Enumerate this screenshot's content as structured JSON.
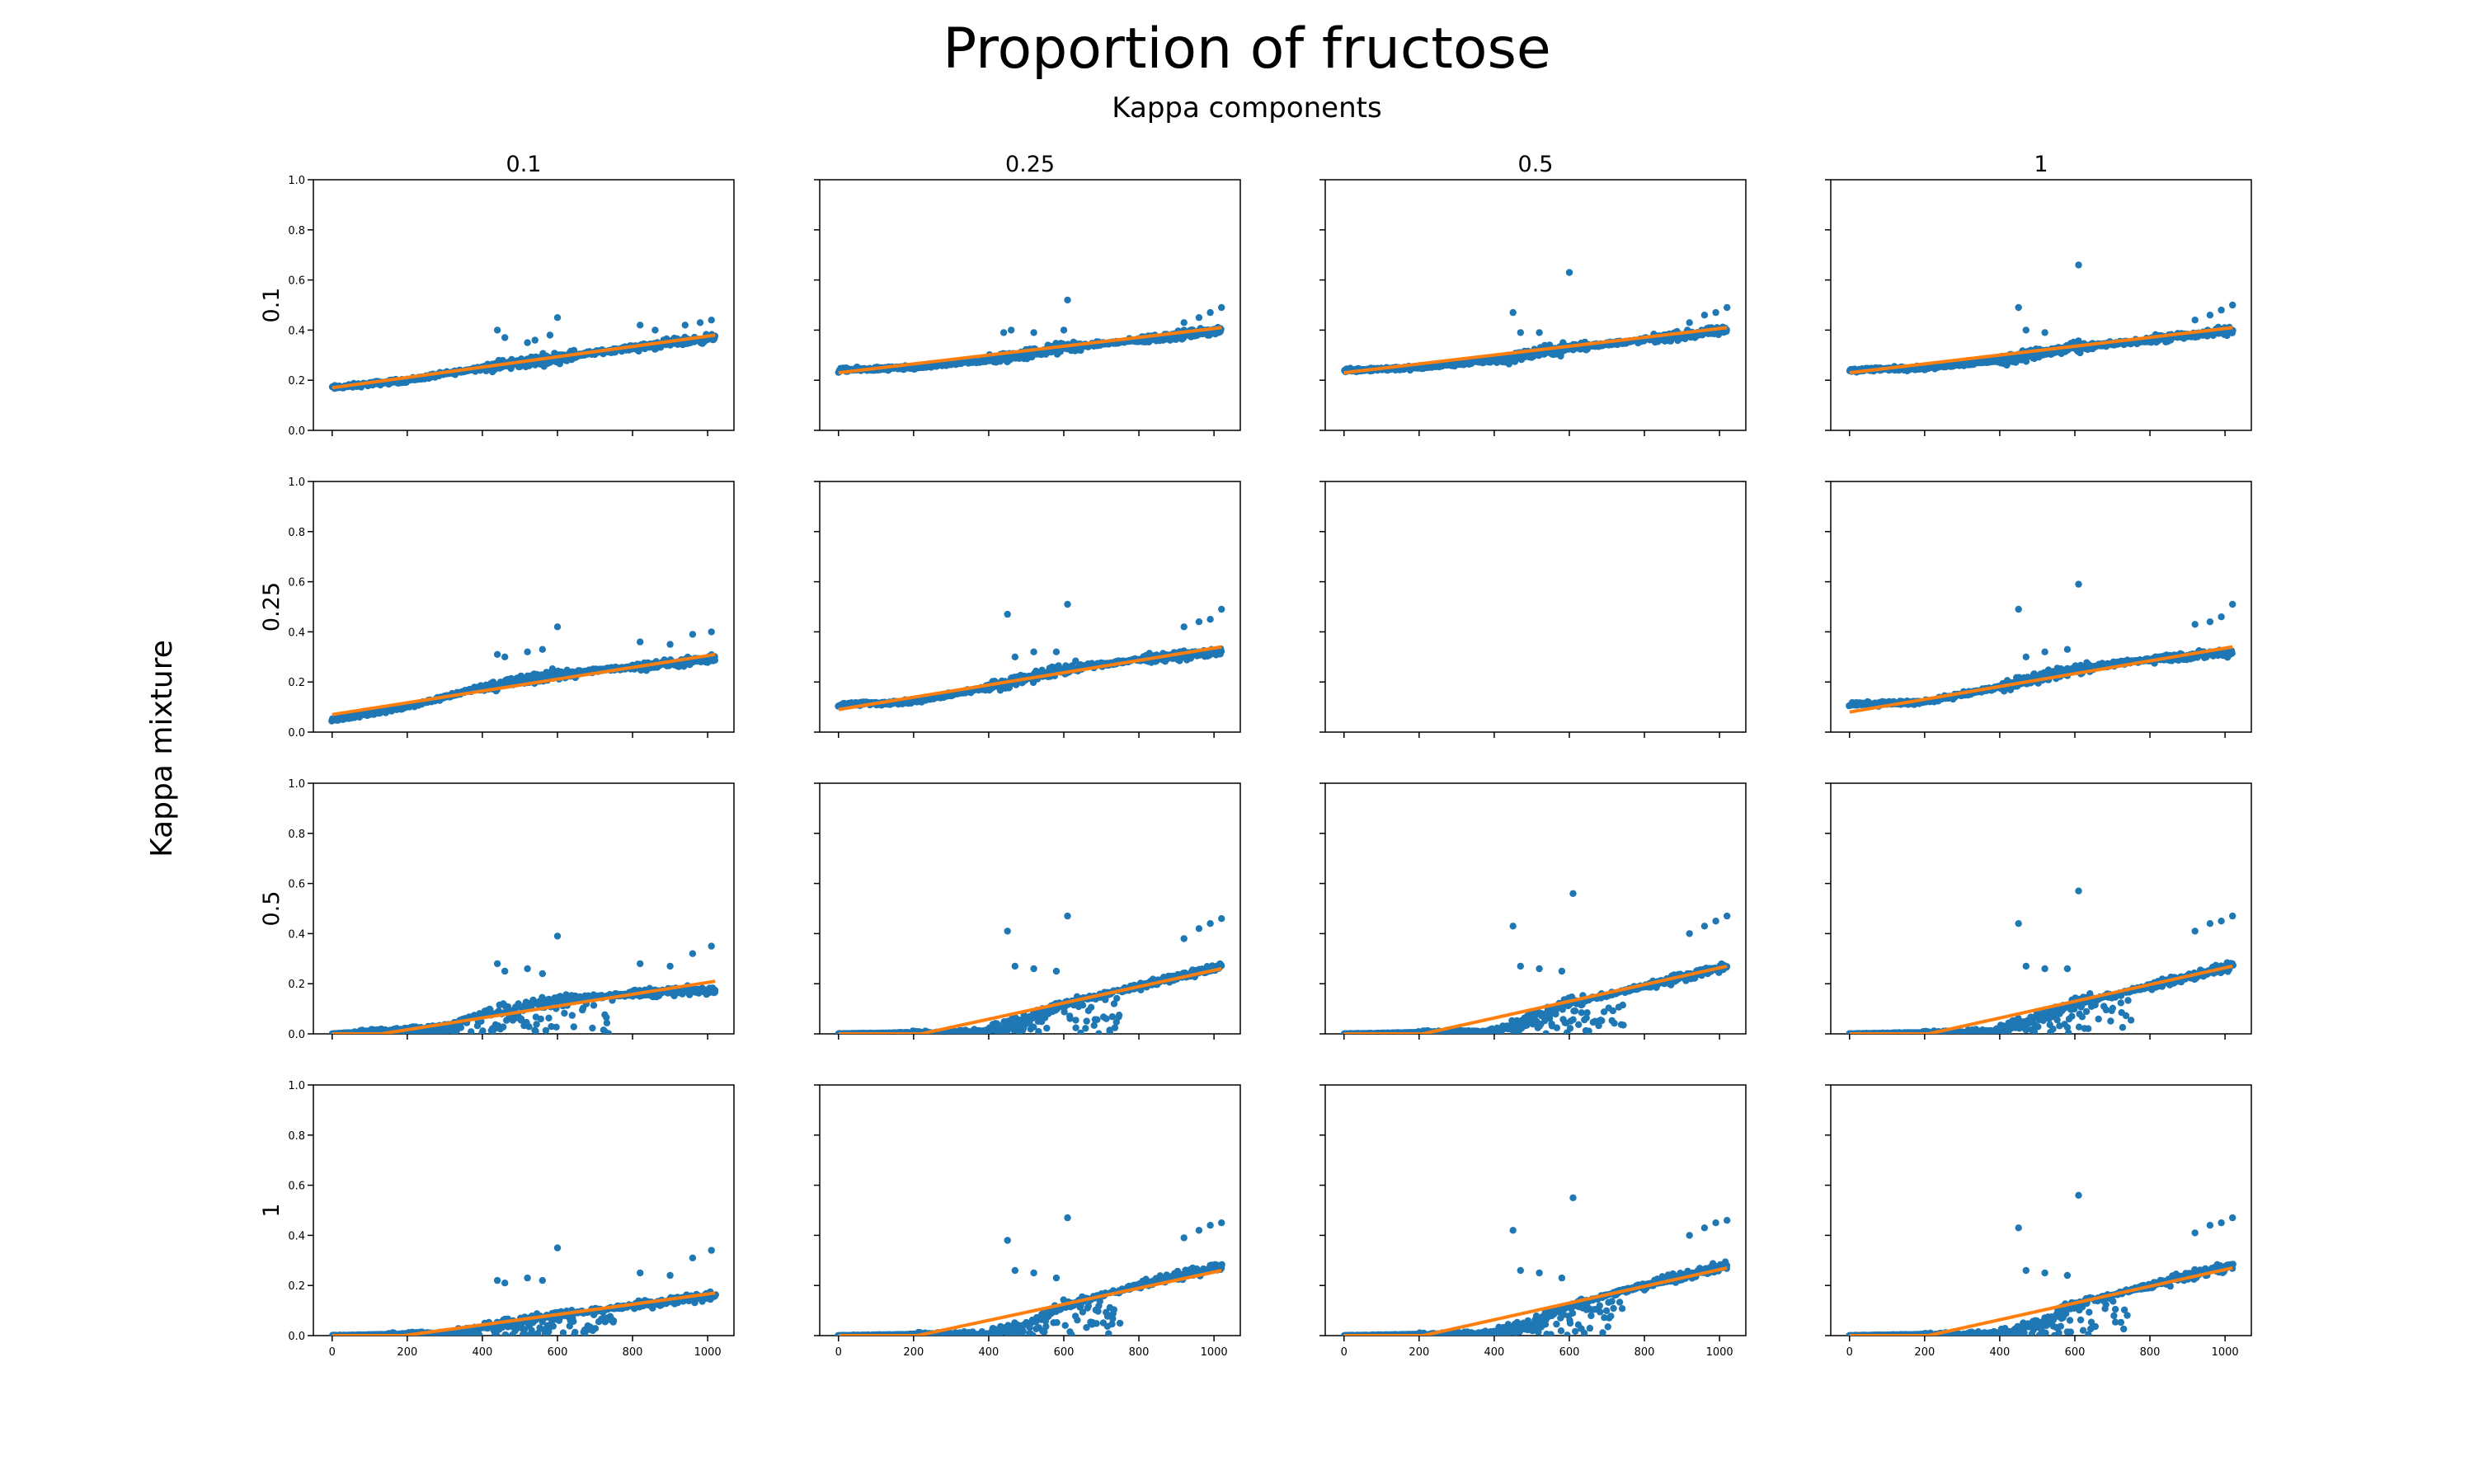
{
  "figure": {
    "title": "Proportion of fructose",
    "subtitle": "Kappa components",
    "row_axis_label": "Kappa mixture",
    "col_labels": [
      "0.1",
      "0.25",
      "0.5",
      "1"
    ],
    "row_labels": [
      "0.1",
      "0.25",
      "0.5",
      "1"
    ]
  },
  "colors": {
    "points": "#1f77b4",
    "fit_line": "#ff7f0e",
    "axes": "#000000"
  },
  "chart_data": {
    "type": "scatter",
    "layout": "4x4 grid of scatter plots with linear fit lines; columns = Kappa components, rows = Kappa mixture",
    "xlim": [
      -50,
      1070
    ],
    "ylim": [
      0.0,
      1.0
    ],
    "x_ticks": [
      "0",
      "200",
      "400",
      "600",
      "800",
      "1000"
    ],
    "y_ticks": [
      "0.0",
      "0.2",
      "0.4",
      "0.6",
      "0.8",
      "1.0"
    ],
    "x_tick_labels_shown_on_row": 4,
    "y_tick_labels_shown_on_col": 1,
    "x_range": [
      0,
      1020
    ],
    "panels": [
      {
        "row": 1,
        "col": 1,
        "empty": false,
        "fit_start": [
          0,
          0.17
        ],
        "fit_end": [
          1020,
          0.38
        ],
        "x_at_zero": 0,
        "trend": [
          [
            0,
            0.17
          ],
          [
            200,
            0.2
          ],
          [
            400,
            0.25
          ],
          [
            600,
            0.29
          ],
          [
            800,
            0.33
          ],
          [
            1020,
            0.37
          ]
        ],
        "outliers": [
          [
            440,
            0.4
          ],
          [
            460,
            0.37
          ],
          [
            520,
            0.35
          ],
          [
            540,
            0.36
          ],
          [
            600,
            0.45
          ],
          [
            580,
            0.38
          ],
          [
            820,
            0.42
          ],
          [
            860,
            0.4
          ],
          [
            940,
            0.42
          ],
          [
            980,
            0.43
          ],
          [
            1010,
            0.44
          ]
        ]
      },
      {
        "row": 1,
        "col": 2,
        "empty": false,
        "fit_start": [
          0,
          0.23
        ],
        "fit_end": [
          1020,
          0.41
        ],
        "x_at_zero": 0,
        "trend": [
          [
            0,
            0.24
          ],
          [
            200,
            0.25
          ],
          [
            400,
            0.28
          ],
          [
            600,
            0.33
          ],
          [
            800,
            0.36
          ],
          [
            1020,
            0.4
          ]
        ],
        "outliers": [
          [
            440,
            0.39
          ],
          [
            460,
            0.4
          ],
          [
            520,
            0.39
          ],
          [
            610,
            0.52
          ],
          [
            600,
            0.4
          ],
          [
            920,
            0.43
          ],
          [
            960,
            0.45
          ],
          [
            990,
            0.47
          ],
          [
            1020,
            0.49
          ]
        ]
      },
      {
        "row": 1,
        "col": 3,
        "empty": false,
        "fit_start": [
          0,
          0.23
        ],
        "fit_end": [
          1020,
          0.41
        ],
        "x_at_zero": 0,
        "trend": [
          [
            0,
            0.24
          ],
          [
            200,
            0.25
          ],
          [
            400,
            0.28
          ],
          [
            600,
            0.33
          ],
          [
            800,
            0.36
          ],
          [
            1020,
            0.4
          ]
        ],
        "outliers": [
          [
            450,
            0.47
          ],
          [
            470,
            0.39
          ],
          [
            520,
            0.39
          ],
          [
            600,
            0.63
          ],
          [
            920,
            0.43
          ],
          [
            960,
            0.46
          ],
          [
            990,
            0.47
          ],
          [
            1020,
            0.49
          ]
        ]
      },
      {
        "row": 1,
        "col": 4,
        "empty": false,
        "fit_start": [
          0,
          0.23
        ],
        "fit_end": [
          1020,
          0.41
        ],
        "x_at_zero": 0,
        "trend": [
          [
            0,
            0.24
          ],
          [
            200,
            0.25
          ],
          [
            400,
            0.28
          ],
          [
            600,
            0.33
          ],
          [
            800,
            0.36
          ],
          [
            1020,
            0.4
          ]
        ],
        "outliers": [
          [
            450,
            0.49
          ],
          [
            470,
            0.4
          ],
          [
            520,
            0.39
          ],
          [
            610,
            0.66
          ],
          [
            920,
            0.44
          ],
          [
            960,
            0.46
          ],
          [
            990,
            0.48
          ],
          [
            1020,
            0.5
          ]
        ]
      },
      {
        "row": 2,
        "col": 1,
        "empty": false,
        "fit_start": [
          0,
          0.07
        ],
        "fit_end": [
          1020,
          0.31
        ],
        "x_at_zero": 0,
        "trend": [
          [
            0,
            0.05
          ],
          [
            200,
            0.1
          ],
          [
            400,
            0.18
          ],
          [
            600,
            0.23
          ],
          [
            800,
            0.26
          ],
          [
            1020,
            0.29
          ]
        ],
        "outliers": [
          [
            440,
            0.31
          ],
          [
            460,
            0.3
          ],
          [
            520,
            0.32
          ],
          [
            600,
            0.42
          ],
          [
            560,
            0.33
          ],
          [
            820,
            0.36
          ],
          [
            900,
            0.35
          ],
          [
            960,
            0.39
          ],
          [
            1010,
            0.4
          ]
        ]
      },
      {
        "row": 2,
        "col": 2,
        "empty": false,
        "fit_start": [
          0,
          0.09
        ],
        "fit_end": [
          1020,
          0.34
        ],
        "x_at_zero": 0,
        "trend": [
          [
            0,
            0.11
          ],
          [
            200,
            0.12
          ],
          [
            400,
            0.18
          ],
          [
            600,
            0.25
          ],
          [
            800,
            0.29
          ],
          [
            1020,
            0.32
          ]
        ],
        "outliers": [
          [
            450,
            0.47
          ],
          [
            470,
            0.3
          ],
          [
            520,
            0.32
          ],
          [
            610,
            0.51
          ],
          [
            580,
            0.32
          ],
          [
            920,
            0.42
          ],
          [
            960,
            0.44
          ],
          [
            990,
            0.45
          ],
          [
            1020,
            0.49
          ]
        ]
      },
      {
        "row": 2,
        "col": 3,
        "empty": true
      },
      {
        "row": 2,
        "col": 4,
        "empty": false,
        "fit_start": [
          0,
          0.08
        ],
        "fit_end": [
          1020,
          0.34
        ],
        "x_at_zero": 0,
        "trend": [
          [
            0,
            0.11
          ],
          [
            200,
            0.12
          ],
          [
            400,
            0.18
          ],
          [
            600,
            0.25
          ],
          [
            800,
            0.29
          ],
          [
            1020,
            0.32
          ]
        ],
        "outliers": [
          [
            450,
            0.49
          ],
          [
            470,
            0.3
          ],
          [
            520,
            0.32
          ],
          [
            610,
            0.59
          ],
          [
            580,
            0.33
          ],
          [
            920,
            0.43
          ],
          [
            960,
            0.44
          ],
          [
            990,
            0.46
          ],
          [
            1020,
            0.51
          ]
        ]
      },
      {
        "row": 3,
        "col": 1,
        "empty": false,
        "fit_start": [
          130,
          0.0
        ],
        "fit_end": [
          1020,
          0.21
        ],
        "x_at_zero": 130,
        "trend": [
          [
            0,
            0.0
          ],
          [
            300,
            0.03
          ],
          [
            400,
            0.08
          ],
          [
            600,
            0.14
          ],
          [
            800,
            0.16
          ],
          [
            1020,
            0.18
          ]
        ],
        "outliers": [
          [
            440,
            0.28
          ],
          [
            460,
            0.25
          ],
          [
            520,
            0.26
          ],
          [
            600,
            0.39
          ],
          [
            560,
            0.24
          ],
          [
            820,
            0.28
          ],
          [
            900,
            0.27
          ],
          [
            960,
            0.32
          ],
          [
            1010,
            0.35
          ]
        ]
      },
      {
        "row": 3,
        "col": 2,
        "empty": false,
        "fit_start": [
          220,
          0.0
        ],
        "fit_end": [
          1020,
          0.26
        ],
        "x_at_zero": 220,
        "trend": [
          [
            0,
            0.0
          ],
          [
            380,
            0.01
          ],
          [
            480,
            0.05
          ],
          [
            600,
            0.12
          ],
          [
            800,
            0.19
          ],
          [
            1020,
            0.27
          ]
        ],
        "outliers": [
          [
            450,
            0.41
          ],
          [
            470,
            0.27
          ],
          [
            520,
            0.26
          ],
          [
            610,
            0.47
          ],
          [
            580,
            0.25
          ],
          [
            920,
            0.38
          ],
          [
            960,
            0.42
          ],
          [
            990,
            0.44
          ],
          [
            1020,
            0.46
          ]
        ]
      },
      {
        "row": 3,
        "col": 3,
        "empty": false,
        "fit_start": [
          210,
          0.0
        ],
        "fit_end": [
          1020,
          0.27
        ],
        "x_at_zero": 210,
        "trend": [
          [
            0,
            0.0
          ],
          [
            380,
            0.01
          ],
          [
            480,
            0.05
          ],
          [
            600,
            0.12
          ],
          [
            800,
            0.19
          ],
          [
            1020,
            0.27
          ]
        ],
        "outliers": [
          [
            450,
            0.43
          ],
          [
            470,
            0.27
          ],
          [
            520,
            0.26
          ],
          [
            610,
            0.56
          ],
          [
            580,
            0.25
          ],
          [
            920,
            0.4
          ],
          [
            960,
            0.43
          ],
          [
            990,
            0.45
          ],
          [
            1020,
            0.47
          ]
        ]
      },
      {
        "row": 3,
        "col": 4,
        "empty": false,
        "fit_start": [
          210,
          0.0
        ],
        "fit_end": [
          1020,
          0.27
        ],
        "x_at_zero": 210,
        "trend": [
          [
            0,
            0.0
          ],
          [
            380,
            0.01
          ],
          [
            480,
            0.05
          ],
          [
            600,
            0.12
          ],
          [
            800,
            0.19
          ],
          [
            1020,
            0.27
          ]
        ],
        "outliers": [
          [
            450,
            0.44
          ],
          [
            470,
            0.27
          ],
          [
            520,
            0.26
          ],
          [
            610,
            0.57
          ],
          [
            580,
            0.26
          ],
          [
            920,
            0.41
          ],
          [
            960,
            0.44
          ],
          [
            990,
            0.45
          ],
          [
            1020,
            0.47
          ]
        ]
      },
      {
        "row": 4,
        "col": 1,
        "empty": false,
        "fit_start": [
          190,
          0.0
        ],
        "fit_end": [
          1020,
          0.17
        ],
        "x_at_zero": 190,
        "trend": [
          [
            0,
            0.0
          ],
          [
            300,
            0.01
          ],
          [
            420,
            0.04
          ],
          [
            600,
            0.08
          ],
          [
            800,
            0.12
          ],
          [
            1020,
            0.16
          ]
        ],
        "outliers": [
          [
            440,
            0.22
          ],
          [
            460,
            0.21
          ],
          [
            520,
            0.23
          ],
          [
            600,
            0.35
          ],
          [
            560,
            0.22
          ],
          [
            820,
            0.25
          ],
          [
            900,
            0.24
          ],
          [
            960,
            0.31
          ],
          [
            1010,
            0.34
          ]
        ]
      },
      {
        "row": 4,
        "col": 2,
        "empty": false,
        "fit_start": [
          210,
          0.0
        ],
        "fit_end": [
          1020,
          0.26
        ],
        "x_at_zero": 210,
        "trend": [
          [
            0,
            0.0
          ],
          [
            400,
            0.01
          ],
          [
            500,
            0.05
          ],
          [
            600,
            0.12
          ],
          [
            800,
            0.2
          ],
          [
            1020,
            0.28
          ]
        ],
        "outliers": [
          [
            450,
            0.38
          ],
          [
            470,
            0.26
          ],
          [
            520,
            0.25
          ],
          [
            610,
            0.47
          ],
          [
            580,
            0.23
          ],
          [
            920,
            0.39
          ],
          [
            960,
            0.42
          ],
          [
            990,
            0.44
          ],
          [
            1020,
            0.45
          ]
        ]
      },
      {
        "row": 4,
        "col": 3,
        "empty": false,
        "fit_start": [
          210,
          0.0
        ],
        "fit_end": [
          1020,
          0.27
        ],
        "x_at_zero": 210,
        "trend": [
          [
            0,
            0.0
          ],
          [
            400,
            0.01
          ],
          [
            500,
            0.05
          ],
          [
            600,
            0.12
          ],
          [
            800,
            0.2
          ],
          [
            1020,
            0.28
          ]
        ],
        "outliers": [
          [
            450,
            0.42
          ],
          [
            470,
            0.26
          ],
          [
            520,
            0.25
          ],
          [
            610,
            0.55
          ],
          [
            580,
            0.23
          ],
          [
            920,
            0.4
          ],
          [
            960,
            0.43
          ],
          [
            990,
            0.45
          ],
          [
            1020,
            0.46
          ]
        ]
      },
      {
        "row": 4,
        "col": 4,
        "empty": false,
        "fit_start": [
          210,
          0.0
        ],
        "fit_end": [
          1020,
          0.27
        ],
        "x_at_zero": 210,
        "trend": [
          [
            0,
            0.0
          ],
          [
            400,
            0.01
          ],
          [
            500,
            0.05
          ],
          [
            600,
            0.12
          ],
          [
            800,
            0.2
          ],
          [
            1020,
            0.28
          ]
        ],
        "outliers": [
          [
            450,
            0.43
          ],
          [
            470,
            0.26
          ],
          [
            520,
            0.25
          ],
          [
            610,
            0.56
          ],
          [
            580,
            0.24
          ],
          [
            920,
            0.41
          ],
          [
            960,
            0.44
          ],
          [
            990,
            0.45
          ],
          [
            1020,
            0.47
          ]
        ]
      }
    ]
  }
}
